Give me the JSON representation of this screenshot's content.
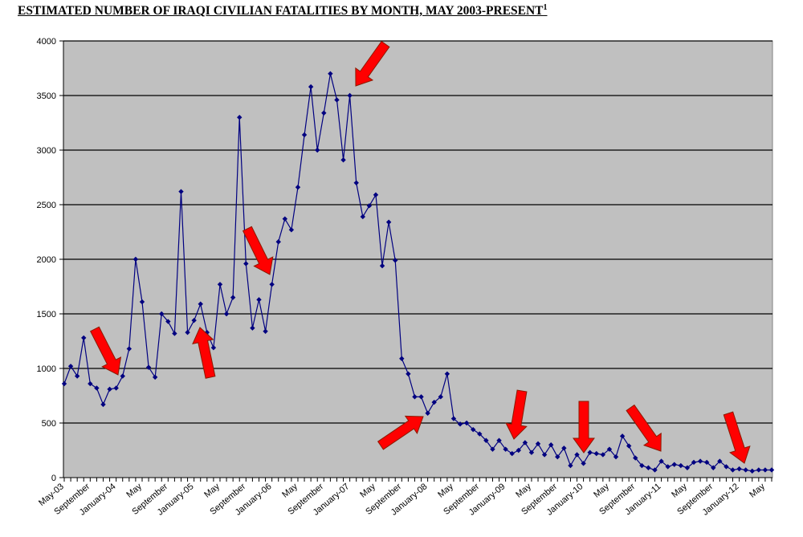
{
  "chart_data": {
    "type": "line",
    "title": "ESTIMATED NUMBER OF IRAQI CIVILIAN FATALITIES BY MONTH, MAY 2003-PRESENT",
    "title_footnote": "1",
    "xlabel": "",
    "ylabel": "",
    "ylim": [
      0,
      4000
    ],
    "yticks": [
      0,
      500,
      1000,
      1500,
      2000,
      2500,
      3000,
      3500,
      4000
    ],
    "grid": true,
    "legend": "none",
    "x_tick_every": 4,
    "x_tick_labels": [
      "May-03",
      "September",
      "January-04",
      "May",
      "September",
      "January-05",
      "May",
      "September",
      "January-06",
      "May",
      "September",
      "January-07",
      "May",
      "September",
      "January-08",
      "May",
      "September",
      "January-09",
      "May",
      "September",
      "January-10",
      "May",
      "September",
      "January-11",
      "May",
      "September",
      "January-12",
      "May"
    ],
    "series": [
      {
        "name": "Iraqi civilian fatalities",
        "color": "#000080",
        "values": [
          860,
          1020,
          930,
          1280,
          860,
          820,
          670,
          810,
          820,
          930,
          1180,
          2000,
          1610,
          1010,
          920,
          1500,
          1430,
          1320,
          2620,
          1330,
          1440,
          1590,
          1330,
          1190,
          1770,
          1500,
          1650,
          3300,
          1960,
          1370,
          1630,
          1340,
          1770,
          2160,
          2370,
          2270,
          2660,
          3140,
          3580,
          3000,
          3340,
          3700,
          3460,
          2910,
          3500,
          2700,
          2390,
          2490,
          2590,
          1940,
          2340,
          1990,
          1090,
          950,
          740,
          740,
          590,
          690,
          740,
          950,
          540,
          490,
          500,
          440,
          400,
          340,
          260,
          340,
          260,
          220,
          250,
          320,
          230,
          310,
          210,
          300,
          190,
          270,
          110,
          210,
          130,
          230,
          220,
          210,
          260,
          190,
          380,
          290,
          180,
          110,
          90,
          70,
          150,
          100,
          120,
          110,
          90,
          140,
          150,
          140,
          90,
          150,
          100,
          70,
          80,
          70,
          60,
          70,
          70,
          70
        ]
      }
    ],
    "annotation_color": "#ff0000",
    "plot_background": "#c0c0c0"
  }
}
